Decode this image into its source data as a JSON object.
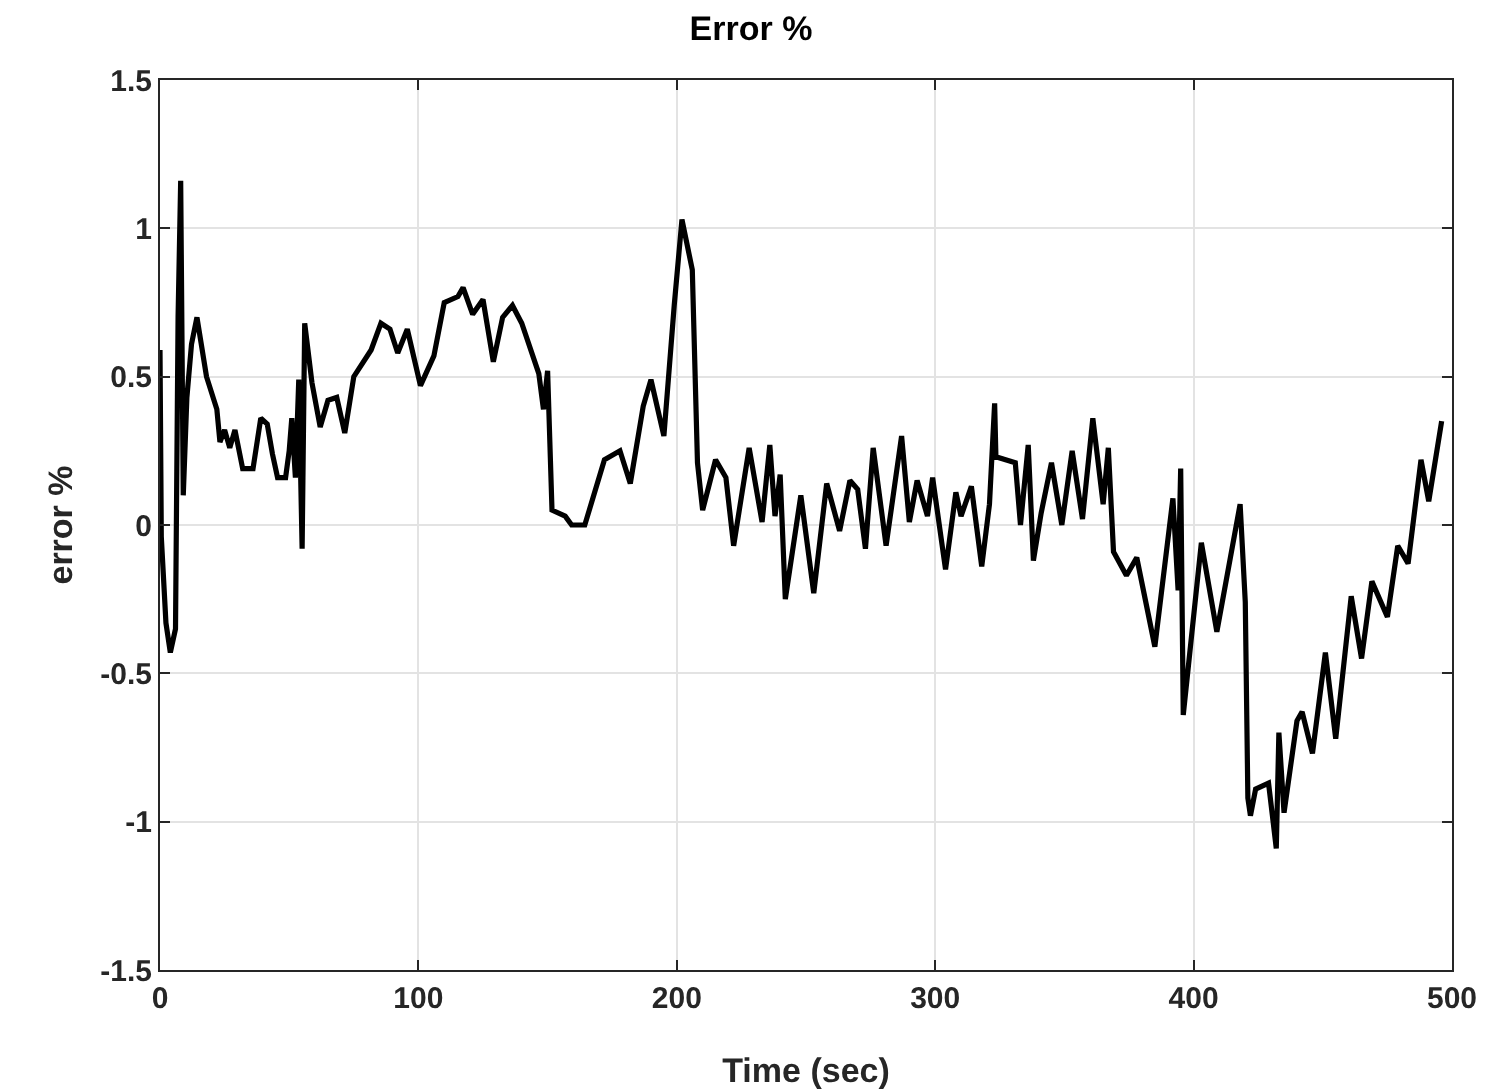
{
  "chart_data": {
    "type": "line",
    "title": "Error %",
    "xlabel": "Time (sec)",
    "ylabel": "error %",
    "xlim": [
      0,
      500
    ],
    "xticks": [
      0,
      100,
      200,
      300,
      400,
      500
    ],
    "ylim": [
      -1.5,
      1.5
    ],
    "yticks": [
      -1.5,
      -1,
      -0.5,
      0,
      0.5,
      1,
      1.5
    ],
    "grid": true,
    "legend": false,
    "marker": "none",
    "line_style": "solid",
    "series": [
      {
        "color": "#000000",
        "x": [
          0,
          0.5,
          2.3,
          4,
          6,
          7,
          8,
          9,
          10.4,
          12.2,
          14.3,
          18,
          22,
          23.2,
          25,
          27,
          29,
          32,
          36,
          39,
          41.5,
          43.5,
          45.5,
          48.6,
          50,
          51,
          52.4,
          53.7,
          55,
          56,
          58.8,
          62,
          65,
          68.4,
          71.5,
          75,
          81.7,
          85.5,
          89,
          92,
          95.7,
          100.8,
          106,
          110,
          115.3,
          117.3,
          121,
          125,
          129,
          132.6,
          136.4,
          140,
          146.6,
          148.4,
          150,
          151.7,
          156.8,
          159.3,
          164.4,
          172,
          178,
          182,
          187,
          190,
          195,
          199,
          202,
          206,
          208,
          210,
          215,
          219,
          222,
          228,
          233,
          236,
          238,
          240,
          242,
          248,
          253,
          258,
          263,
          267,
          270,
          273,
          276,
          281,
          287,
          290,
          293,
          297,
          299,
          304,
          308,
          310,
          314,
          318,
          321,
          323,
          323.5,
          331,
          333,
          336,
          338,
          341,
          345,
          349,
          353,
          357,
          361,
          365,
          367,
          369,
          374,
          378,
          385,
          392,
          394,
          395,
          396,
          403,
          409,
          418,
          420,
          421,
          422,
          424,
          429,
          432,
          433,
          435,
          440,
          442,
          446,
          451,
          455,
          461,
          465,
          469,
          475,
          479,
          483,
          488,
          491,
          496
        ],
        "values": [
          0.59,
          -0.04,
          -0.33,
          -0.43,
          -0.35,
          0.7,
          1.16,
          0.1,
          0.43,
          0.61,
          0.7,
          0.5,
          0.39,
          0.28,
          0.32,
          0.26,
          0.32,
          0.19,
          0.19,
          0.36,
          0.34,
          0.24,
          0.16,
          0.16,
          0.25,
          0.36,
          0.16,
          0.49,
          -0.08,
          0.68,
          0.48,
          0.33,
          0.42,
          0.43,
          0.31,
          0.5,
          0.59,
          0.68,
          0.66,
          0.58,
          0.66,
          0.47,
          0.57,
          0.75,
          0.77,
          0.8,
          0.71,
          0.76,
          0.55,
          0.7,
          0.74,
          0.68,
          0.51,
          0.39,
          0.52,
          0.05,
          0.03,
          0,
          0,
          0.22,
          0.25,
          0.14,
          0.4,
          0.49,
          0.3,
          0.74,
          1.03,
          0.86,
          0.21,
          0.05,
          0.22,
          0.16,
          -0.07,
          0.26,
          0.01,
          0.27,
          0.03,
          0.17,
          -0.25,
          0.1,
          -0.23,
          0.14,
          -0.02,
          0.15,
          0.12,
          -0.08,
          0.26,
          -0.07,
          0.3,
          0.01,
          0.15,
          0.03,
          0.16,
          -0.15,
          0.11,
          0.03,
          0.13,
          -0.14,
          0.07,
          0.41,
          0.23,
          0.21,
          0,
          0.27,
          -0.12,
          0.04,
          0.21,
          0,
          0.25,
          0.02,
          0.36,
          0.07,
          0.26,
          -0.09,
          -0.17,
          -0.11,
          -0.41,
          0.09,
          -0.22,
          0.19,
          -0.64,
          -0.06,
          -0.36,
          0.07,
          -0.26,
          -0.92,
          -0.98,
          -0.89,
          -0.87,
          -1.09,
          -0.7,
          -0.97,
          -0.66,
          -0.63,
          -0.77,
          -0.43,
          -0.72,
          -0.24,
          -0.45,
          -0.19,
          -0.31,
          -0.07,
          -0.13,
          0.22,
          0.08,
          0.35
        ]
      }
    ]
  }
}
